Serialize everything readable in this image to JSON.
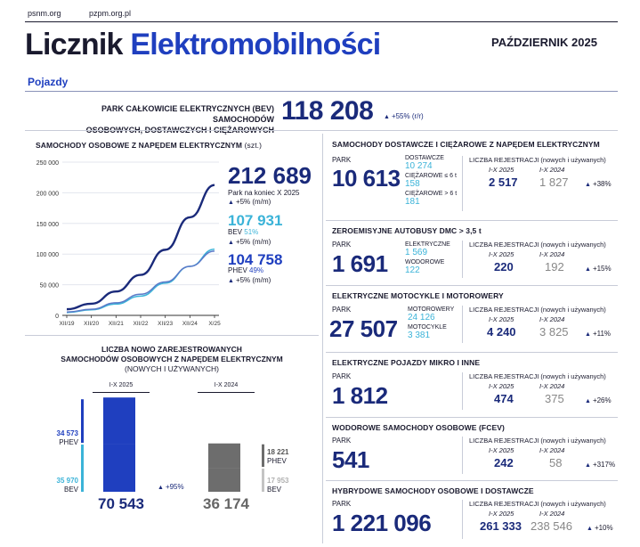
{
  "header": {
    "site1": "psnm.org",
    "site2": "pzpm.org.pl",
    "title_part1": "Licznik",
    "title_part2": "Elektromobilności",
    "period": "PAŹDZIERNIK 2025",
    "section": "Pojazdy"
  },
  "total": {
    "label_line1": "PARK CAŁKOWICIE ELEKTRYCZNYCH (BEV) SAMOCHODÓW",
    "label_line2": "OSOBOWYCH, DOSTAWCZYCH I CIĘŻAROWYCH",
    "value": "118 208",
    "change": "+55% (r/r)"
  },
  "passenger": {
    "title": "SAMOCHODY OSOBOWE Z NAPĘDEM ELEKTRYCZNYM",
    "unit": "(szt.)",
    "total_value": "212 689",
    "total_label": "Park na koniec X 2025",
    "total_change": "+5% (m/m)",
    "bev_value": "107 931",
    "bev_label": "BEV",
    "bev_share": "51%",
    "bev_change": "+5% (m/m)",
    "phev_value": "104 758",
    "phev_label": "PHEV",
    "phev_share": "49%",
    "phev_change": "+5% (m/m)"
  },
  "chart_data": [
    {
      "type": "line",
      "x": [
        "XII/19",
        "XII/20",
        "XII/21",
        "XII/22",
        "XII/23",
        "XII/24",
        "X/25"
      ],
      "ylim": [
        0,
        250000
      ],
      "yticks": [
        "0",
        "50 000",
        "100 000",
        "150 000",
        "200 000",
        "250 000"
      ],
      "series": [
        {
          "name": "Park na koniec X 2025",
          "color": "#1a2a7a",
          "values": [
            10000,
            19000,
            39000,
            66000,
            107000,
            160000,
            212689
          ]
        },
        {
          "name": "BEV",
          "color": "#3bb3d8",
          "values": [
            4600,
            9000,
            18500,
            31500,
            52500,
            80000,
            107931
          ]
        },
        {
          "name": "PHEV",
          "color": "#5b79c8",
          "values": [
            5400,
            10000,
            20500,
            34500,
            54500,
            80000,
            104758
          ]
        }
      ]
    },
    {
      "type": "bar",
      "title": "LICZBA NOWO ZAREJESTROWANYCH SAMOCHODÓW OSOBOWYCH Z NAPĘDEM ELEKTRYCZNYM",
      "subtitle": "(NOWYCH I UŻYWANYCH)",
      "categories": [
        "I-X 2025",
        "I-X 2024"
      ],
      "stacked": true,
      "series": [
        {
          "name": "PHEV",
          "values": [
            34573,
            18221
          ]
        },
        {
          "name": "BEV",
          "values": [
            35970,
            17953
          ]
        }
      ],
      "totals": [
        70543,
        36174
      ],
      "change": "+95%",
      "labels": {
        "phev_2025": "34 573",
        "bev_2025": "35 970",
        "phev_2024": "18 221",
        "bev_2024": "17 953",
        "total_2025": "70 543",
        "total_2024": "36 174"
      }
    }
  ],
  "bars_text": {
    "title_line1": "LICZBA NOWO ZAREJESTROWANYCH",
    "title_line2": "SAMOCHODÓW OSOBOWYCH Z NAPĘDEM ELEKTRYCZNYM",
    "title_line3": "(NOWYCH I UŻYWANYCH)",
    "cat1": "I-X 2025",
    "cat2": "I-X 2024",
    "phev": "PHEV",
    "bev": "BEV"
  },
  "reg": {
    "park": "PARK",
    "head": "LICZBA REJESTRACJI (nowych i używanych)",
    "col1": "I-X 2025",
    "col2": "I-X 2024"
  },
  "trucks": {
    "title": "SAMOCHODY DOSTAWCZE I CIĘŻAROWE Z NAPĘDEM ELEKTRYCZNYM",
    "park": "10 613",
    "sub1_label": "DOSTAWCZE",
    "sub1_value": "10 274",
    "sub2_label": "CIĘŻAROWE ≤ 6 t",
    "sub2_value": "158",
    "sub3_label": "CIĘŻAROWE > 6 t",
    "sub3_value": "181",
    "reg2025": "2 517",
    "reg2024": "1 827",
    "change": "+38%"
  },
  "buses": {
    "title": "ZEROEMISYJNE AUTOBUSY DMC > 3,5 t",
    "park": "1 691",
    "sub1_label": "ELEKTRYCZNE",
    "sub1_value": "1 569",
    "sub2_label": "WODOROWE",
    "sub2_value": "122",
    "reg2025": "220",
    "reg2024": "192",
    "change": "+15%"
  },
  "motos": {
    "title": "ELEKTRYCZNE MOTOCYKLE I MOTOROWERY",
    "park": "27 507",
    "sub1_label": "MOTOROWERY",
    "sub1_value": "24 126",
    "sub2_label": "MOTOCYKLE",
    "sub2_value": "3 381",
    "reg2025": "4 240",
    "reg2024": "3 825",
    "change": "+11%"
  },
  "micro": {
    "title": "ELEKTRYCZNE POJAZDY MIKRO I INNE",
    "park": "1 812",
    "reg2025": "474",
    "reg2024": "375",
    "change": "+26%"
  },
  "fcev": {
    "title": "WODOROWE SAMOCHODY OSOBOWE (FCEV)",
    "park": "541",
    "reg2025": "242",
    "reg2024": "58",
    "change": "+317%"
  },
  "hybrid": {
    "title": "HYBRYDOWE SAMOCHODY OSOBOWE I DOSTAWCZE",
    "park": "1 221 096",
    "reg2025": "261 333",
    "reg2024": "238 546",
    "change": "+10%"
  }
}
